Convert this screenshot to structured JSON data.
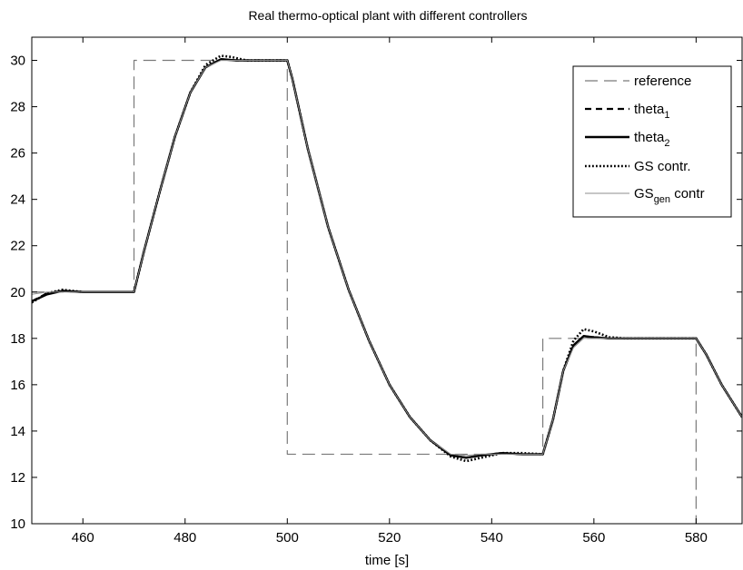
{
  "chart_data": {
    "type": "line",
    "title": "Real thermo-optical plant with different controllers",
    "xlabel": "time [s]",
    "ylabel": "",
    "xlim": [
      450,
      589
    ],
    "ylim": [
      10,
      31
    ],
    "xticks": [
      460,
      480,
      500,
      520,
      540,
      560,
      580
    ],
    "yticks": [
      10,
      12,
      14,
      16,
      18,
      20,
      22,
      24,
      26,
      28,
      30
    ],
    "grid": false,
    "legend_position": "top-right",
    "series": [
      {
        "name": "reference",
        "legend_main": "reference",
        "legend_sub": "",
        "legend_suffix": "",
        "style": "long-dash",
        "color": "#7a7a7a",
        "x": [
          450,
          470,
          470,
          500,
          500,
          550,
          550,
          580,
          580
        ],
        "y": [
          20,
          20,
          30,
          30,
          13,
          13,
          18,
          18,
          10
        ]
      },
      {
        "name": "theta1",
        "legend_main": "theta",
        "legend_sub": "1",
        "legend_suffix": "",
        "style": "dashed-thick",
        "color": "#000000",
        "x": [
          450,
          453,
          456,
          460,
          465,
          470,
          472,
          475,
          478,
          481,
          484,
          487,
          490,
          495,
          500,
          501,
          504,
          508,
          512,
          516,
          520,
          524,
          528,
          532,
          535,
          538,
          542,
          546,
          550,
          552,
          554,
          556,
          558,
          560,
          563,
          566,
          570,
          575,
          580,
          582,
          585,
          589
        ],
        "y": [
          19.6,
          19.95,
          20.05,
          20.0,
          20.0,
          20.0,
          21.8,
          24.3,
          26.7,
          28.6,
          29.7,
          30.05,
          30.0,
          30.0,
          30.0,
          29.2,
          26.2,
          22.8,
          20.1,
          17.9,
          16.0,
          14.6,
          13.6,
          12.95,
          12.85,
          12.95,
          13.05,
          13.0,
          13.0,
          14.5,
          16.6,
          17.7,
          18.1,
          18.05,
          18.0,
          18.0,
          18.0,
          18.0,
          18.0,
          17.3,
          16.0,
          14.6
        ]
      },
      {
        "name": "theta2",
        "legend_main": "theta",
        "legend_sub": "2",
        "legend_suffix": "",
        "style": "solid-thick",
        "color": "#000000",
        "x": [
          450,
          453,
          456,
          460,
          465,
          470,
          472,
          475,
          478,
          481,
          484,
          487,
          490,
          495,
          500,
          501,
          504,
          508,
          512,
          516,
          520,
          524,
          528,
          532,
          535,
          538,
          542,
          546,
          550,
          552,
          554,
          556,
          558,
          560,
          563,
          566,
          570,
          575,
          580,
          582,
          585,
          589
        ],
        "y": [
          19.6,
          19.9,
          20.05,
          20.0,
          20.0,
          20.0,
          21.8,
          24.3,
          26.7,
          28.6,
          29.7,
          30.05,
          30.0,
          30.0,
          30.0,
          29.2,
          26.2,
          22.8,
          20.1,
          17.9,
          16.0,
          14.6,
          13.6,
          12.95,
          12.85,
          12.95,
          13.05,
          13.0,
          13.0,
          14.5,
          16.6,
          17.7,
          18.1,
          18.05,
          18.0,
          18.0,
          18.0,
          18.0,
          18.0,
          17.3,
          16.0,
          14.6
        ]
      },
      {
        "name": "GS contr.",
        "legend_main": "GS contr.",
        "legend_sub": "",
        "legend_suffix": "",
        "style": "dotted-thick",
        "color": "#000000",
        "x": [
          450,
          453,
          456,
          460,
          465,
          470,
          472,
          475,
          478,
          481,
          484,
          487,
          489,
          492,
          495,
          500,
          501,
          504,
          508,
          512,
          516,
          520,
          524,
          528,
          532,
          535,
          538,
          542,
          546,
          550,
          552,
          554,
          556,
          558,
          560,
          563,
          566,
          570,
          575,
          580,
          582,
          585,
          589
        ],
        "y": [
          19.55,
          19.95,
          20.1,
          20.0,
          20.0,
          20.0,
          21.8,
          24.3,
          26.7,
          28.6,
          29.8,
          30.2,
          30.15,
          30.0,
          30.0,
          30.0,
          29.2,
          26.2,
          22.8,
          20.1,
          17.9,
          16.0,
          14.6,
          13.6,
          12.9,
          12.7,
          12.85,
          13.05,
          13.05,
          13.0,
          14.5,
          16.6,
          17.9,
          18.4,
          18.3,
          18.05,
          18.0,
          18.0,
          18.0,
          18.0,
          17.3,
          16.0,
          14.6
        ]
      },
      {
        "name": "GSgen contr",
        "legend_main": "GS",
        "legend_sub": "gen",
        "legend_suffix": " contr",
        "style": "solid-thin",
        "color": "#8c8c8c",
        "x": [
          450,
          453,
          456,
          460,
          465,
          470,
          472,
          475,
          478,
          481,
          484,
          487,
          490,
          495,
          500,
          501,
          504,
          508,
          512,
          516,
          520,
          524,
          528,
          532,
          535,
          538,
          542,
          546,
          550,
          552,
          554,
          556,
          558,
          560,
          563,
          566,
          570,
          575,
          580,
          582,
          585,
          589
        ],
        "y": [
          19.9,
          20.0,
          20.0,
          20.0,
          20.0,
          20.0,
          21.8,
          24.3,
          26.7,
          28.6,
          29.7,
          30.0,
          30.0,
          30.0,
          30.0,
          29.2,
          26.2,
          22.8,
          20.1,
          17.9,
          16.0,
          14.6,
          13.6,
          13.0,
          12.95,
          13.0,
          13.0,
          13.0,
          13.0,
          14.5,
          16.6,
          17.6,
          18.0,
          18.0,
          18.0,
          18.0,
          18.0,
          18.0,
          18.0,
          17.3,
          16.0,
          14.6
        ]
      }
    ]
  }
}
